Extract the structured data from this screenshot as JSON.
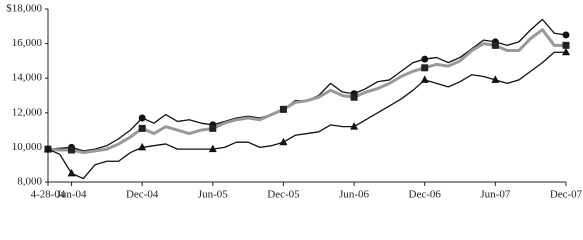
{
  "chart_data": {
    "type": "line",
    "categories": [
      "4-28-04",
      null,
      "Jun-04",
      null,
      null,
      null,
      null,
      null,
      "Dec-04",
      null,
      null,
      null,
      null,
      null,
      "Jun-05",
      null,
      null,
      null,
      null,
      null,
      "Dec-05",
      null,
      null,
      null,
      null,
      null,
      "Jun-06",
      null,
      null,
      null,
      null,
      null,
      "Dec-06",
      null,
      null,
      null,
      null,
      null,
      "Jun-07",
      null,
      null,
      null,
      null,
      null,
      "Dec-07"
    ],
    "series": [
      {
        "color": "#111111",
        "marker": "circle",
        "width": 1.3,
        "values": [
          9900,
          9950,
          10000,
          9800,
          9900,
          10100,
          10500,
          11000,
          11700,
          11400,
          11900,
          11500,
          11600,
          11400,
          11300,
          11500,
          11700,
          11800,
          11700,
          11900,
          12200,
          12700,
          12700,
          13000,
          13700,
          13200,
          13100,
          13400,
          13800,
          13900,
          14400,
          14900,
          15100,
          15200,
          14900,
          15200,
          15700,
          16200,
          16100,
          15900,
          16100,
          16800,
          17400,
          16600,
          16500
        ]
      },
      {
        "color": "#999999",
        "marker": "square",
        "width": 3,
        "values": [
          9900,
          9850,
          9850,
          9700,
          9800,
          9900,
          10200,
          10600,
          11100,
          10800,
          11200,
          11000,
          10800,
          11000,
          11100,
          11400,
          11600,
          11700,
          11600,
          11900,
          12200,
          12600,
          12700,
          12900,
          13300,
          13000,
          12900,
          13200,
          13400,
          13700,
          14100,
          14400,
          14600,
          14800,
          14700,
          15000,
          15600,
          16000,
          15900,
          15600,
          15600,
          16300,
          16800,
          15900,
          15900
        ]
      },
      {
        "color": "#111111",
        "marker": "triangle",
        "width": 1.3,
        "values": [
          9900,
          9600,
          8500,
          8200,
          9000,
          9200,
          9200,
          9700,
          10000,
          10100,
          10200,
          9900,
          9900,
          9900,
          9900,
          10000,
          10300,
          10300,
          10000,
          10100,
          10300,
          10700,
          10800,
          10900,
          11300,
          11200,
          11200,
          11600,
          12000,
          12400,
          12800,
          13300,
          13900,
          13700,
          13500,
          13800,
          14200,
          14100,
          13900,
          13700,
          13900,
          14400,
          14900,
          15500,
          15500
        ]
      }
    ],
    "ylim": [
      8000,
      18000
    ],
    "yticks": [
      {
        "value": 8000,
        "label": "8,000"
      },
      {
        "value": 10000,
        "label": "10,000"
      },
      {
        "value": 12000,
        "label": "12,000"
      },
      {
        "value": 14000,
        "label": "14,000"
      },
      {
        "value": 16000,
        "label": "16,000"
      },
      {
        "value": 18000,
        "label": "$18,000"
      }
    ],
    "grid": false
  }
}
